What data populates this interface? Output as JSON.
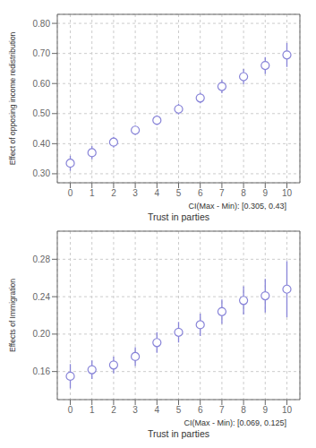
{
  "chart_data": [
    {
      "type": "scatter",
      "x": [
        0,
        1,
        2,
        3,
        4,
        5,
        6,
        7,
        8,
        9,
        10
      ],
      "values": [
        0.335,
        0.37,
        0.405,
        0.445,
        0.478,
        0.515,
        0.552,
        0.59,
        0.623,
        0.66,
        0.695
      ],
      "error_low": [
        0.025,
        0.022,
        0.018,
        0.016,
        0.016,
        0.018,
        0.018,
        0.022,
        0.025,
        0.028,
        0.04
      ],
      "error_high": [
        0.025,
        0.022,
        0.018,
        0.016,
        0.016,
        0.018,
        0.018,
        0.022,
        0.025,
        0.028,
        0.04
      ],
      "y_label": "Effect of opposing income redistribution",
      "x_label": "Trust in parties",
      "annotation": "CI(Max - Min): [0.305, 0.43]",
      "xlim": [
        -0.6,
        10.6
      ],
      "xticks": [
        0,
        1,
        2,
        3,
        4,
        5,
        6,
        7,
        8,
        9,
        10
      ],
      "ylim": [
        0.27,
        0.83
      ],
      "yticks": [
        {
          "value": 0.3,
          "label": "0.30"
        },
        {
          "value": 0.4,
          "label": "0.40"
        },
        {
          "value": 0.5,
          "label": "0.50"
        },
        {
          "value": 0.6,
          "label": "0.60"
        },
        {
          "value": 0.7,
          "label": "0.70"
        },
        {
          "value": 0.8,
          "label": "0.80"
        }
      ],
      "grid": true,
      "marker": "circle"
    },
    {
      "type": "scatter",
      "x": [
        0,
        1,
        2,
        3,
        4,
        5,
        6,
        7,
        8,
        9,
        10
      ],
      "values": [
        0.155,
        0.162,
        0.167,
        0.176,
        0.191,
        0.202,
        0.21,
        0.224,
        0.236,
        0.241,
        0.248
      ],
      "error_low": [
        0.013,
        0.01,
        0.009,
        0.01,
        0.011,
        0.011,
        0.012,
        0.013,
        0.015,
        0.018,
        0.03
      ],
      "error_high": [
        0.013,
        0.01,
        0.009,
        0.01,
        0.011,
        0.011,
        0.012,
        0.013,
        0.015,
        0.018,
        0.03
      ],
      "y_label": "Effects of Immigration",
      "x_label": "Trust in parties",
      "annotation": "CI(Max - Min): [0.069, 0.125]",
      "xlim": [
        -0.6,
        10.6
      ],
      "xticks": [
        0,
        1,
        2,
        3,
        4,
        5,
        6,
        7,
        8,
        9,
        10
      ],
      "ylim": [
        0.13,
        0.31
      ],
      "yticks": [
        0.16,
        {
          "value": 0.2,
          "label": "0.20"
        },
        0.24,
        0.28
      ],
      "grid": true,
      "marker": "circle"
    }
  ]
}
